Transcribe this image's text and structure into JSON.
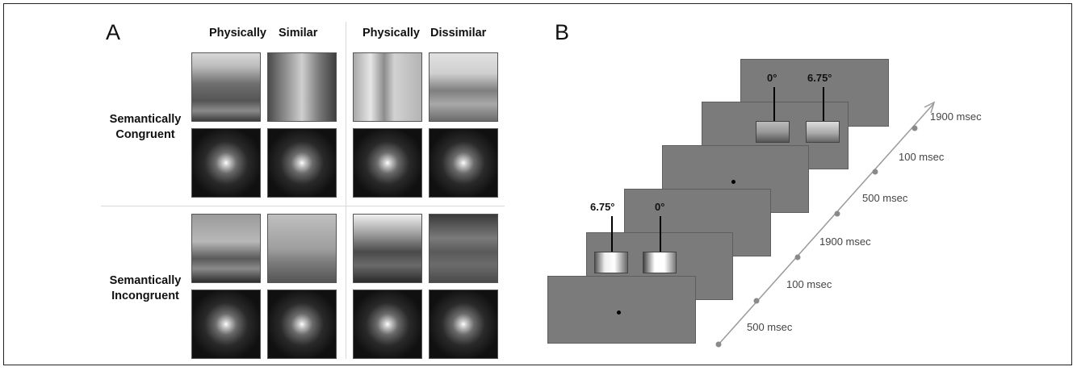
{
  "panel_a": {
    "letter": "A",
    "col_heads": [
      "Physically",
      "Similar",
      "Physically",
      "Dissimilar"
    ],
    "row_labels": [
      {
        "line1": "Semantically",
        "line2": "Congruent"
      },
      {
        "line1": "Semantically",
        "line2": "Incongruent"
      }
    ]
  },
  "panel_b": {
    "letter": "B",
    "degree_labels": {
      "target_first": "6.75°",
      "center_first": "0°",
      "center_second": "0°",
      "target_second": "6.75°"
    },
    "timeline": [
      "500 msec",
      "100 msec",
      "1900 msec",
      "500 msec",
      "100 msec",
      "1900 msec"
    ]
  }
}
